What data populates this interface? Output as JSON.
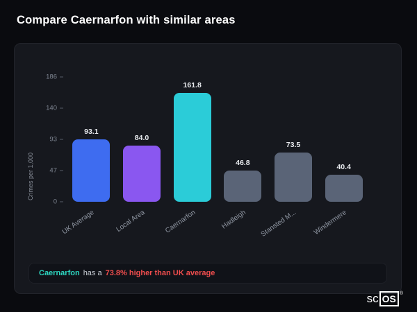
{
  "page": {
    "title": "Compare Caernarfon with similar areas"
  },
  "chart_data": {
    "type": "bar",
    "categories": [
      "UK Average",
      "Local Area",
      "Caernarfon",
      "Hadleigh",
      "Stansted M...",
      "Windermere"
    ],
    "values": [
      93.1,
      84.0,
      161.8,
      46.8,
      73.5,
      40.4
    ],
    "bar_colors": [
      "#3e6cf0",
      "#8a57f0",
      "#2bccd8",
      "#5a6477",
      "#5a6477",
      "#5a6477"
    ],
    "title": "",
    "xlabel": "",
    "ylabel": "Crimes per 1,000",
    "yticks": [
      186,
      140,
      93,
      47,
      0
    ],
    "ylim": [
      0,
      186
    ],
    "grid": false,
    "legend": false
  },
  "note": {
    "area": "Caernarfon",
    "middle": "has a",
    "stat": "73.8% higher than UK average"
  },
  "brand": {
    "prefix": "sc",
    "boxed": "OS",
    "reg": "®"
  },
  "colors": {
    "background": "#0a0b0f",
    "card": "#16181e",
    "bar_blue": "#3e6cf0",
    "bar_purple": "#8a57f0",
    "bar_teal": "#2bccd8",
    "bar_gray": "#5a6477",
    "accent_teal": "#2dd4bf",
    "stat_red": "#ef4d4d"
  }
}
